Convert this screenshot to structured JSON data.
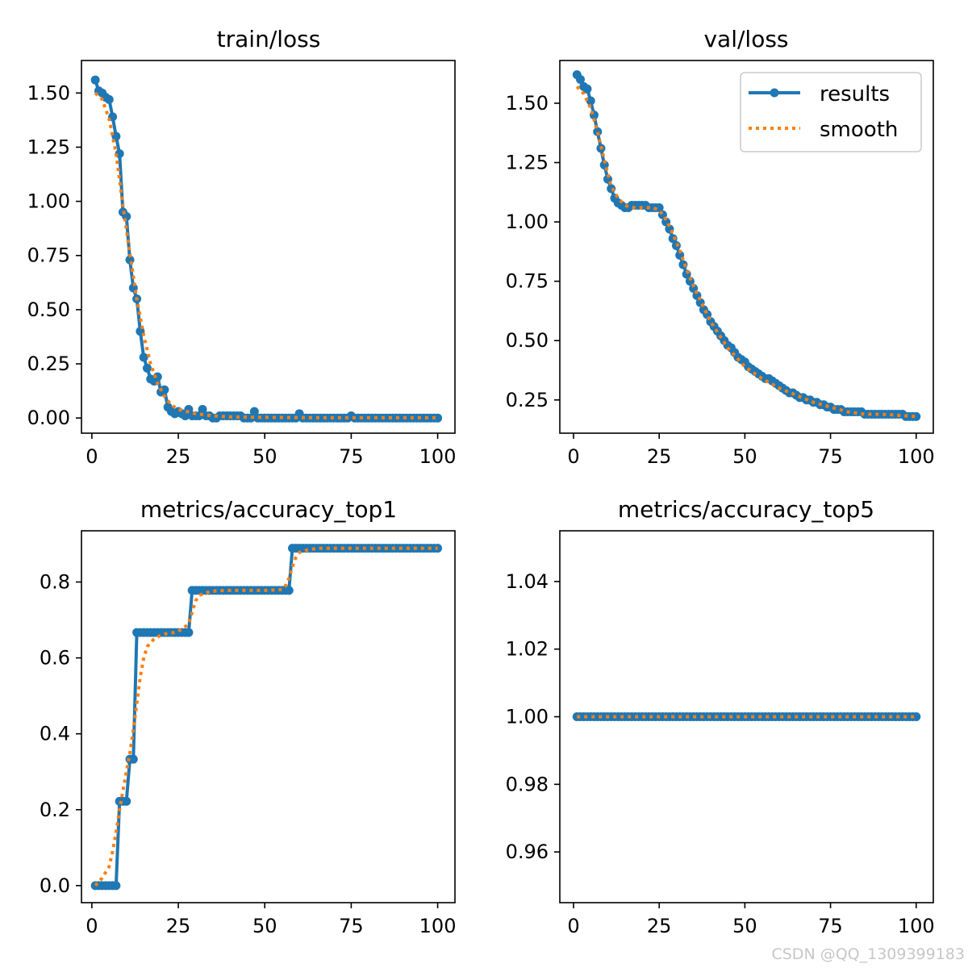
{
  "watermark": "CSDN @QQ_1309399183",
  "colors": {
    "results": "#1f77b4",
    "smooth": "#ff7f0e"
  },
  "legend": {
    "location": "top-right",
    "entries": [
      "results",
      "smooth"
    ]
  },
  "chart_data": [
    {
      "type": "line",
      "title": "train/loss",
      "xlim": [
        -3,
        105
      ],
      "ylim": [
        -0.07,
        1.65
      ],
      "xticks": [
        0,
        25,
        50,
        75,
        100
      ],
      "xtick_labels": [
        "0",
        "25",
        "50",
        "75",
        "100"
      ],
      "yticks": [
        0,
        0.25,
        0.5,
        0.75,
        1.0,
        1.25,
        1.5
      ],
      "ytick_labels": [
        "0.00",
        "0.25",
        "0.50",
        "0.75",
        "1.00",
        "1.25",
        "1.50"
      ],
      "series": [
        {
          "name": "results",
          "style": "line-marker",
          "x": [
            1,
            2,
            3,
            4,
            5,
            6,
            7,
            8,
            9,
            10,
            11,
            12,
            13,
            14,
            15,
            16,
            17,
            18,
            19,
            20,
            21,
            22,
            23,
            24,
            25,
            26,
            27,
            28,
            29,
            30,
            31,
            32,
            33,
            34,
            35,
            36,
            37,
            38,
            39,
            40,
            41,
            42,
            43,
            44,
            45,
            46,
            47,
            48,
            49,
            50,
            51,
            52,
            53,
            54,
            55,
            56,
            57,
            58,
            59,
            60,
            61,
            62,
            63,
            64,
            65,
            66,
            67,
            68,
            69,
            70,
            71,
            72,
            73,
            74,
            75,
            76,
            77,
            78,
            79,
            80,
            81,
            82,
            83,
            84,
            85,
            86,
            87,
            88,
            89,
            90,
            91,
            92,
            93,
            94,
            95,
            96,
            97,
            98,
            99,
            100
          ],
          "y": [
            1.56,
            1.51,
            1.5,
            1.48,
            1.47,
            1.39,
            1.3,
            1.22,
            0.95,
            0.93,
            0.73,
            0.6,
            0.55,
            0.4,
            0.28,
            0.23,
            0.18,
            0.17,
            0.19,
            0.12,
            0.13,
            0.05,
            0.03,
            0.02,
            0.03,
            0.02,
            0.01,
            0.04,
            0.01,
            0.01,
            0.01,
            0.04,
            0.01,
            0.01,
            0.0,
            0.0,
            0.01,
            0.01,
            0.01,
            0.01,
            0.01,
            0.01,
            0.01,
            0.0,
            0.0,
            0.0,
            0.03,
            0.0,
            0.0,
            0.0,
            0.0,
            0.0,
            0.0,
            0.0,
            0.0,
            0.0,
            0.0,
            0.0,
            0.0,
            0.02,
            0.0,
            0.0,
            0.0,
            0.0,
            0.0,
            0.0,
            0.0,
            0.0,
            0.0,
            0.0,
            0.0,
            0.0,
            0.0,
            0.0,
            0.01,
            0.0,
            0.0,
            0.0,
            0.0,
            0.0,
            0.0,
            0.0,
            0.0,
            0.0,
            0.0,
            0.0,
            0.0,
            0.0,
            0.0,
            0.0,
            0.0,
            0.0,
            0.0,
            0.0,
            0.0,
            0.0,
            0.0,
            0.0,
            0.0,
            0.0
          ]
        },
        {
          "name": "smooth",
          "style": "dotted",
          "x": [
            1,
            3,
            5,
            7,
            9,
            11,
            13,
            15,
            17,
            19,
            21,
            23,
            25,
            30,
            35,
            40,
            50,
            60,
            70,
            80,
            90,
            100
          ],
          "y": [
            1.5,
            1.47,
            1.38,
            1.22,
            0.98,
            0.76,
            0.55,
            0.38,
            0.25,
            0.16,
            0.1,
            0.06,
            0.04,
            0.02,
            0.01,
            0.005,
            0.003,
            0.002,
            0.001,
            0.001,
            0.001,
            0.001
          ]
        }
      ]
    },
    {
      "type": "line",
      "title": "val/loss",
      "xlim": [
        -4,
        105
      ],
      "ylim": [
        0.11,
        1.68
      ],
      "xticks": [
        0,
        25,
        50,
        75,
        100
      ],
      "xtick_labels": [
        "0",
        "25",
        "50",
        "75",
        "100"
      ],
      "yticks": [
        0.25,
        0.5,
        0.75,
        1.0,
        1.25,
        1.5
      ],
      "ytick_labels": [
        "0.25",
        "0.50",
        "0.75",
        "1.00",
        "1.25",
        "1.50"
      ],
      "legend": true,
      "series": [
        {
          "name": "results",
          "style": "line-marker",
          "x": [
            1,
            2,
            3,
            4,
            5,
            6,
            7,
            8,
            9,
            10,
            11,
            12,
            13,
            14,
            15,
            16,
            17,
            18,
            19,
            20,
            21,
            22,
            23,
            24,
            25,
            26,
            27,
            28,
            29,
            30,
            31,
            32,
            33,
            34,
            35,
            36,
            37,
            38,
            39,
            40,
            41,
            42,
            43,
            44,
            45,
            46,
            47,
            48,
            49,
            50,
            51,
            52,
            53,
            54,
            55,
            56,
            57,
            58,
            59,
            60,
            61,
            62,
            63,
            64,
            65,
            66,
            67,
            68,
            69,
            70,
            71,
            72,
            73,
            74,
            75,
            76,
            77,
            78,
            79,
            80,
            81,
            82,
            83,
            84,
            85,
            86,
            87,
            88,
            89,
            90,
            91,
            92,
            93,
            94,
            95,
            96,
            97,
            98,
            99,
            100
          ],
          "y": [
            1.62,
            1.6,
            1.57,
            1.56,
            1.51,
            1.45,
            1.38,
            1.31,
            1.24,
            1.18,
            1.14,
            1.1,
            1.08,
            1.07,
            1.06,
            1.06,
            1.07,
            1.07,
            1.07,
            1.07,
            1.07,
            1.06,
            1.06,
            1.06,
            1.06,
            1.03,
            1.0,
            0.97,
            0.93,
            0.9,
            0.86,
            0.82,
            0.78,
            0.75,
            0.72,
            0.69,
            0.66,
            0.63,
            0.61,
            0.58,
            0.56,
            0.54,
            0.52,
            0.5,
            0.48,
            0.47,
            0.45,
            0.43,
            0.42,
            0.41,
            0.39,
            0.38,
            0.37,
            0.36,
            0.35,
            0.34,
            0.34,
            0.33,
            0.32,
            0.31,
            0.3,
            0.29,
            0.28,
            0.28,
            0.27,
            0.26,
            0.26,
            0.25,
            0.25,
            0.24,
            0.24,
            0.23,
            0.23,
            0.22,
            0.22,
            0.21,
            0.21,
            0.21,
            0.2,
            0.2,
            0.2,
            0.2,
            0.2,
            0.2,
            0.19,
            0.19,
            0.19,
            0.19,
            0.19,
            0.19,
            0.19,
            0.19,
            0.19,
            0.19,
            0.19,
            0.19,
            0.18,
            0.18,
            0.18,
            0.18
          ]
        },
        {
          "name": "smooth",
          "style": "dotted",
          "x": [
            1,
            3,
            5,
            7,
            9,
            11,
            13,
            15,
            17,
            19,
            21,
            23,
            25,
            27,
            29,
            31,
            33,
            35,
            40,
            45,
            50,
            55,
            60,
            65,
            70,
            75,
            80,
            85,
            90,
            95,
            100
          ],
          "y": [
            1.57,
            1.54,
            1.48,
            1.38,
            1.26,
            1.15,
            1.1,
            1.07,
            1.06,
            1.06,
            1.06,
            1.06,
            1.05,
            1.01,
            0.95,
            0.88,
            0.8,
            0.73,
            0.58,
            0.47,
            0.39,
            0.34,
            0.3,
            0.27,
            0.24,
            0.22,
            0.2,
            0.19,
            0.19,
            0.185,
            0.18
          ]
        }
      ]
    },
    {
      "type": "line",
      "title": "metrics/accuracy_top1",
      "xlim": [
        -3,
        105
      ],
      "ylim": [
        -0.045,
        0.935
      ],
      "xticks": [
        0,
        25,
        50,
        75,
        100
      ],
      "xtick_labels": [
        "0",
        "25",
        "50",
        "75",
        "100"
      ],
      "yticks": [
        0,
        0.2,
        0.4,
        0.6,
        0.8
      ],
      "ytick_labels": [
        "0.0",
        "0.2",
        "0.4",
        "0.6",
        "0.8"
      ],
      "series": [
        {
          "name": "results",
          "style": "line-marker",
          "x": [
            1,
            2,
            3,
            4,
            5,
            6,
            7,
            8,
            9,
            10,
            11,
            12,
            13,
            14,
            15,
            16,
            17,
            18,
            19,
            20,
            21,
            22,
            23,
            24,
            25,
            26,
            27,
            28,
            29,
            30,
            31,
            32,
            33,
            34,
            35,
            36,
            37,
            38,
            39,
            40,
            41,
            42,
            43,
            44,
            45,
            46,
            47,
            48,
            49,
            50,
            51,
            52,
            53,
            54,
            55,
            56,
            57,
            58,
            59,
            60,
            61,
            62,
            63,
            64,
            65,
            66,
            67,
            68,
            69,
            70,
            71,
            72,
            73,
            74,
            75,
            76,
            77,
            78,
            79,
            80,
            81,
            82,
            83,
            84,
            85,
            86,
            87,
            88,
            89,
            90,
            91,
            92,
            93,
            94,
            95,
            96,
            97,
            98,
            99,
            100
          ],
          "y": [
            0,
            0,
            0,
            0,
            0,
            0,
            0,
            0.222,
            0.222,
            0.222,
            0.333,
            0.333,
            0.667,
            0.667,
            0.667,
            0.667,
            0.667,
            0.667,
            0.667,
            0.667,
            0.667,
            0.667,
            0.667,
            0.667,
            0.667,
            0.667,
            0.667,
            0.667,
            0.778,
            0.778,
            0.778,
            0.778,
            0.778,
            0.778,
            0.778,
            0.778,
            0.778,
            0.778,
            0.778,
            0.778,
            0.778,
            0.778,
            0.778,
            0.778,
            0.778,
            0.778,
            0.778,
            0.778,
            0.778,
            0.778,
            0.778,
            0.778,
            0.778,
            0.778,
            0.778,
            0.778,
            0.778,
            0.889,
            0.889,
            0.889,
            0.889,
            0.889,
            0.889,
            0.889,
            0.889,
            0.889,
            0.889,
            0.889,
            0.889,
            0.889,
            0.889,
            0.889,
            0.889,
            0.889,
            0.889,
            0.889,
            0.889,
            0.889,
            0.889,
            0.889,
            0.889,
            0.889,
            0.889,
            0.889,
            0.889,
            0.889,
            0.889,
            0.889,
            0.889,
            0.889,
            0.889,
            0.889,
            0.889,
            0.889,
            0.889,
            0.889,
            0.889,
            0.889,
            0.889,
            0.889
          ]
        },
        {
          "name": "smooth",
          "style": "dotted",
          "x": [
            1,
            3,
            5,
            6,
            7,
            8,
            9,
            10,
            11,
            12,
            13,
            14,
            15,
            16,
            18,
            20,
            22,
            24,
            26,
            28,
            29,
            30,
            31,
            33,
            36,
            40,
            45,
            50,
            55,
            56,
            57,
            58,
            59,
            60,
            63,
            66,
            70,
            80,
            90,
            100
          ],
          "y": [
            0.0,
            0.02,
            0.05,
            0.09,
            0.14,
            0.2,
            0.25,
            0.3,
            0.35,
            0.41,
            0.48,
            0.55,
            0.6,
            0.63,
            0.65,
            0.66,
            0.665,
            0.667,
            0.675,
            0.69,
            0.72,
            0.75,
            0.765,
            0.772,
            0.777,
            0.778,
            0.778,
            0.778,
            0.78,
            0.79,
            0.81,
            0.84,
            0.865,
            0.878,
            0.886,
            0.889,
            0.889,
            0.889,
            0.889,
            0.889
          ]
        }
      ]
    },
    {
      "type": "line",
      "title": "metrics/accuracy_top5",
      "xlim": [
        -4,
        105
      ],
      "ylim": [
        0.945,
        1.055
      ],
      "xticks": [
        0,
        25,
        50,
        75,
        100
      ],
      "xtick_labels": [
        "0",
        "25",
        "50",
        "75",
        "100"
      ],
      "yticks": [
        0.96,
        0.98,
        1.0,
        1.02,
        1.04
      ],
      "ytick_labels": [
        "0.96",
        "0.98",
        "1.00",
        "1.02",
        "1.04"
      ],
      "series": [
        {
          "name": "results",
          "style": "line-marker",
          "x_range": [
            1,
            100
          ],
          "constant_y": 1.0
        },
        {
          "name": "smooth",
          "style": "dotted",
          "x": [
            1,
            100
          ],
          "y": [
            1.0,
            1.0
          ]
        }
      ]
    }
  ]
}
